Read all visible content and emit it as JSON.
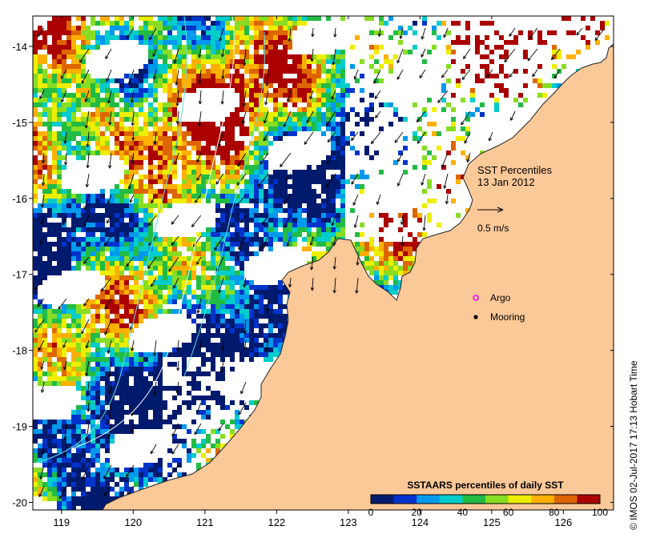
{
  "map": {
    "title_line1": "SST Percentiles",
    "title_line2": "13 Jan 2012",
    "scale_label": "0.5 m/s",
    "x_ticks": [
      "119",
      "120",
      "121",
      "122",
      "123",
      "124",
      "125",
      "126"
    ],
    "y_ticks": [
      "-14",
      "-15",
      "-16",
      "-17",
      "-18",
      "-19",
      "-20"
    ],
    "lon_range": [
      118.6,
      126.7
    ],
    "lat_range": [
      -20.1,
      -13.6
    ]
  },
  "legend": {
    "argo_label": "Argo",
    "mooring_label": "Mooring",
    "argo_color": "#ff00ff",
    "mooring_color": "#000000"
  },
  "colorbar": {
    "title": "SSTAARS percentiles of daily SST",
    "tick_labels": [
      "0",
      "20",
      "40",
      "60",
      "80",
      "100"
    ],
    "colors": [
      "#001a6e",
      "#0033cc",
      "#0099ee",
      "#00cccc",
      "#22bb44",
      "#88dd22",
      "#eeee00",
      "#ffb000",
      "#dd6600",
      "#aa0000"
    ]
  },
  "credit": "© IMOS 02-Jul-2017 17:13 Hobart Time",
  "colors": {
    "land": "#fbc898",
    "ocean_nodata": "#ffffff"
  }
}
